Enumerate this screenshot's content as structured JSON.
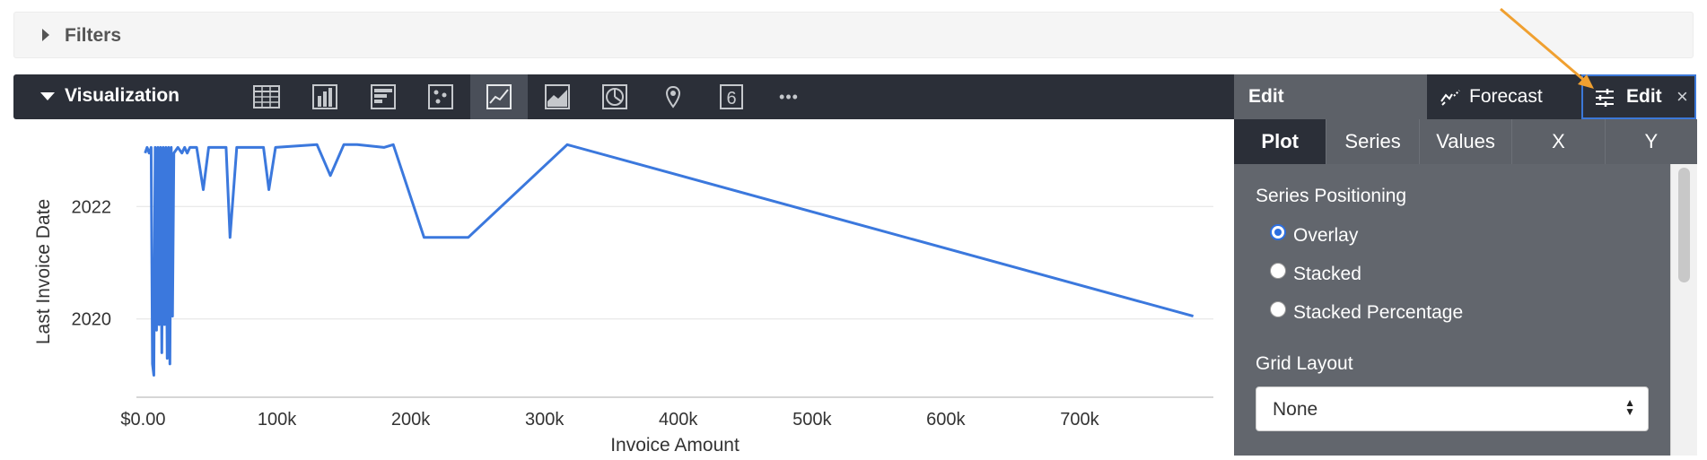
{
  "filters": {
    "label": "Filters"
  },
  "visualization": {
    "label": "Visualization",
    "icons": [
      "table-icon",
      "column-chart-icon",
      "bar-chart-icon",
      "scatter-chart-icon",
      "line-chart-icon",
      "area-chart-icon",
      "pie-chart-icon",
      "map-pin-icon",
      "single-value-icon",
      "more-icon"
    ],
    "active_icon": "line-chart-icon",
    "single_value_glyph": "6",
    "more_glyph": "•••"
  },
  "edit_panel": {
    "header_label": "Edit",
    "forecast_label": "Forecast",
    "edit_tab_label": "Edit",
    "close_glyph": "×",
    "tabs": [
      {
        "label": "Plot",
        "active": true
      },
      {
        "label": "Series",
        "active": false
      },
      {
        "label": "Values",
        "active": false
      },
      {
        "label": "X",
        "active": false
      },
      {
        "label": "Y",
        "active": false
      }
    ],
    "series_positioning": {
      "label": "Series Positioning",
      "options": [
        {
          "label": "Overlay",
          "checked": true
        },
        {
          "label": "Stacked",
          "checked": false
        },
        {
          "label": "Stacked Percentage",
          "checked": false
        }
      ]
    },
    "grid_layout": {
      "label": "Grid Layout",
      "value": "None"
    }
  },
  "colors": {
    "series_line": "#3b78dd",
    "toolbar_bg": "#2b2f38",
    "panel_bg": "#62666d",
    "annotation_arrow": "#f0a030",
    "active_tab_border": "#3c78d8"
  },
  "chart_data": {
    "type": "line",
    "xlabel": "Invoice Amount",
    "ylabel": "Last Invoice Date",
    "x_tick_labels": [
      "$0.00",
      "100k",
      "200k",
      "300k",
      "400k",
      "500k",
      "600k",
      "700k"
    ],
    "x_ticks": [
      0,
      100000,
      200000,
      300000,
      400000,
      500000,
      600000,
      700000
    ],
    "y_tick_labels": [
      "2022",
      "2020"
    ],
    "y_ticks": [
      2022,
      2020
    ],
    "xlim": [
      -5000,
      800000
    ],
    "ylim": [
      2018.8,
      2023.2
    ],
    "grid": true,
    "series": [
      {
        "x": [
          1500,
          3000,
          4500,
          6000,
          7000,
          8000,
          9000,
          10000,
          11000,
          12000,
          13000,
          14000,
          15000,
          16000,
          17000,
          18000,
          19000,
          20000,
          21000,
          22000,
          23000,
          26000,
          29000,
          31000,
          33000,
          35000,
          37000,
          40000,
          45000,
          49000,
          52000,
          55000,
          60000,
          62000,
          65000,
          70000,
          90000,
          94000,
          99000,
          130000,
          140000,
          150000,
          160000,
          180000,
          187000,
          210000,
          243000,
          317000,
          785000
        ],
        "y": [
          2022.95,
          2023.05,
          2022.95,
          2023.05,
          2019.2,
          2019.0,
          2023.05,
          2019.8,
          2023.05,
          2019.9,
          2023.05,
          2019.4,
          2023.05,
          2019.9,
          2023.05,
          2019.3,
          2023.05,
          2019.2,
          2023.05,
          2020.05,
          2022.95,
          2023.05,
          2022.95,
          2023.05,
          2022.95,
          2023.05,
          2023.05,
          2023.05,
          2022.3,
          2023.05,
          2023.05,
          2023.05,
          2023.05,
          2023.05,
          2021.45,
          2023.05,
          2023.05,
          2022.3,
          2023.05,
          2023.1,
          2022.55,
          2023.1,
          2023.1,
          2023.05,
          2023.1,
          2021.45,
          2021.45,
          2023.1,
          2020.05
        ]
      }
    ]
  }
}
